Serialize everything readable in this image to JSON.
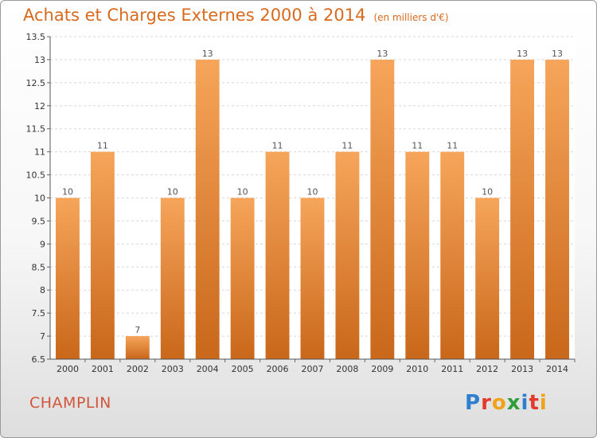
{
  "title": "Achats et Charges Externes 2000 à 2014",
  "unit": "(en milliers d'€)",
  "commune": "CHAMPLIN",
  "logo": {
    "text": "Proxiti",
    "letters": [
      {
        "char": "P",
        "color": "#2f7fd0"
      },
      {
        "char": "r",
        "color": "#e23b2e"
      },
      {
        "char": "o",
        "color": "#f0a21a"
      },
      {
        "char": "x",
        "color": "#2e9e3a"
      },
      {
        "char": "i",
        "color": "#2f7fd0"
      },
      {
        "char": "t",
        "color": "#e23b2e"
      },
      {
        "char": "i",
        "color": "#f0a21a"
      }
    ]
  },
  "chart_data": {
    "type": "bar",
    "categories": [
      "2000",
      "2001",
      "2002",
      "2003",
      "2004",
      "2005",
      "2006",
      "2007",
      "2008",
      "2009",
      "2010",
      "2011",
      "2012",
      "2013",
      "2014"
    ],
    "values": [
      10,
      11,
      7,
      10,
      13,
      10,
      11,
      10,
      11,
      13,
      11,
      11,
      10,
      13,
      13
    ],
    "ylim": [
      6.5,
      13.5
    ],
    "yticks": [
      6.5,
      7,
      7.5,
      8,
      8.5,
      9,
      9.5,
      10,
      10.5,
      11,
      11.5,
      12,
      12.5,
      13,
      13.5
    ],
    "grid": true,
    "bar_color_top": "#f6a55a",
    "bar_color_bottom": "#c9671a"
  }
}
